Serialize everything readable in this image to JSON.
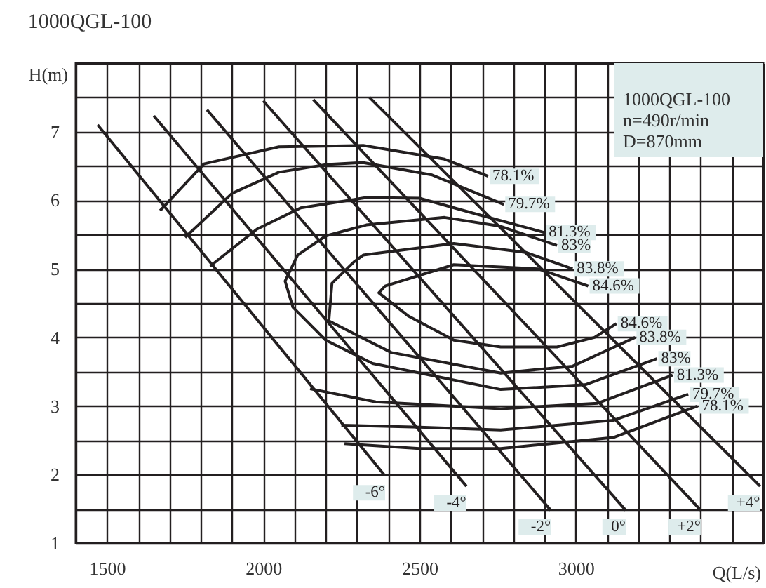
{
  "chart_data": {
    "type": "line",
    "title": "1000QGL-100",
    "xlabel": "Q(L/s)",
    "ylabel": "H(m)",
    "annotations": [
      "1000QGL-100",
      "n=490r/min",
      "D=870mm"
    ],
    "xlim": [
      1400,
      3600
    ],
    "xticks": [
      {
        "value": 1400,
        "label": null
      },
      1500,
      {
        "value": 1600,
        "label": null
      },
      {
        "value": 1700,
        "label": null
      },
      {
        "value": 1800,
        "label": null
      },
      {
        "value": 1900,
        "label": null
      },
      2000,
      {
        "value": 2100,
        "label": null
      },
      {
        "value": 2200,
        "label": null
      },
      {
        "value": 2300,
        "label": null
      },
      {
        "value": 2400,
        "label": null
      },
      2500,
      {
        "value": 2600,
        "label": null
      },
      {
        "value": 2700,
        "label": null
      },
      {
        "value": 2800,
        "label": null
      },
      {
        "value": 2900,
        "label": null
      },
      3000,
      {
        "value": 3100,
        "label": null
      },
      {
        "value": 3200,
        "label": null
      },
      {
        "value": 3300,
        "label": null
      },
      {
        "value": 3400,
        "label": null
      },
      {
        "value": 3500,
        "label": null
      },
      {
        "value": 3600,
        "label": null
      }
    ],
    "ylim": [
      1,
      8
    ],
    "yticks": [
      1,
      {
        "value": 1.5,
        "label": null
      },
      2,
      {
        "value": 2.5,
        "label": null
      },
      3,
      {
        "value": 3.5,
        "label": null
      },
      4,
      {
        "value": 4.5,
        "label": null
      },
      5,
      {
        "value": 5.5,
        "label": null
      },
      6,
      {
        "value": 6.5,
        "label": null
      },
      7,
      {
        "value": 7.5,
        "label": null
      },
      {
        "value": 8,
        "label": null
      }
    ],
    "grid": true,
    "marker": "none",
    "line_style": "solid",
    "series": [
      {
        "name": "-6°",
        "color": "#231f20",
        "x": [
          1470,
          2390
        ],
        "values": [
          7.1,
          1.98
        ]
      },
      {
        "name": "-4°",
        "color": "#231f20",
        "x": [
          1650,
          2650
        ],
        "values": [
          7.23,
          1.83
        ]
      },
      {
        "name": "-2°",
        "color": "#231f20",
        "x": [
          1820,
          2920
        ],
        "values": [
          7.32,
          1.48
        ]
      },
      {
        "name": "0°",
        "color": "#231f20",
        "x": [
          2000,
          3160
        ],
        "values": [
          7.45,
          1.48
        ]
      },
      {
        "name": "+2°",
        "color": "#231f20",
        "x": [
          2160,
          3400
        ],
        "values": [
          7.47,
          1.48
        ]
      },
      {
        "name": "+4°",
        "color": "#231f20",
        "x": [
          2340,
          3590
        ],
        "values": [
          7.5,
          1.83
        ]
      },
      {
        "name": "78.1%",
        "color": "#231f20",
        "x": [
          2720,
          2580,
          2320,
          2050,
          1810,
          1670,
          null,
          2260,
          2500,
          2760,
          3120,
          3390
        ],
        "values": [
          6.35,
          6.6,
          6.8,
          6.78,
          6.53,
          5.85,
          null,
          2.45,
          2.38,
          2.38,
          2.54,
          3.0
        ]
      },
      {
        "name": "79.7%",
        "color": "#231f20",
        "x": [
          2770,
          2540,
          2320,
          2200,
          2050,
          1900,
          1750,
          null,
          2250,
          2500,
          2760,
          3120,
          3360
        ],
        "values": [
          5.94,
          6.37,
          6.55,
          6.52,
          6.41,
          6.1,
          5.46,
          null,
          2.72,
          2.69,
          2.65,
          2.79,
          3.17
        ]
      },
      {
        "name": "81.3%",
        "color": "#231f20",
        "x": [
          2900,
          2690,
          2500,
          2330,
          2120,
          1980,
          1830,
          null,
          2150,
          2360,
          2760,
          3070,
          3310
        ],
        "values": [
          5.53,
          5.79,
          6.03,
          6.04,
          5.89,
          5.58,
          5.04,
          null,
          3.25,
          3.06,
          2.96,
          3.04,
          3.45
        ]
      },
      {
        "name": "83%",
        "color": "#231f20",
        "x": [
          2940,
          2760,
          2580,
          2330,
          2200,
          2110,
          2070,
          2095,
          2200,
          2350,
          2760,
          3030,
          3260
        ],
        "values": [
          5.34,
          5.62,
          5.75,
          5.64,
          5.48,
          5.2,
          4.82,
          4.44,
          3.96,
          3.62,
          3.24,
          3.31,
          3.69
        ]
      },
      {
        "name": "83.8%",
        "color": "#231f20",
        "x": [
          2990,
          2840,
          2610,
          2320,
          2290,
          2220,
          2210,
          2410,
          2760,
          2990,
          3190
        ],
        "values": [
          5.0,
          5.24,
          5.37,
          5.2,
          5.1,
          4.79,
          4.24,
          3.78,
          3.48,
          3.58,
          4.0
        ]
      },
      {
        "name": "84.6%",
        "color": "#231f20",
        "x": [
          3040,
          2880,
          2610,
          2390,
          2370,
          2465,
          2610,
          2760,
          2940,
          3060,
          3130
        ],
        "values": [
          4.75,
          5.0,
          5.06,
          4.75,
          4.65,
          4.31,
          3.96,
          3.86,
          3.86,
          4.0,
          4.2
        ]
      }
    ]
  }
}
